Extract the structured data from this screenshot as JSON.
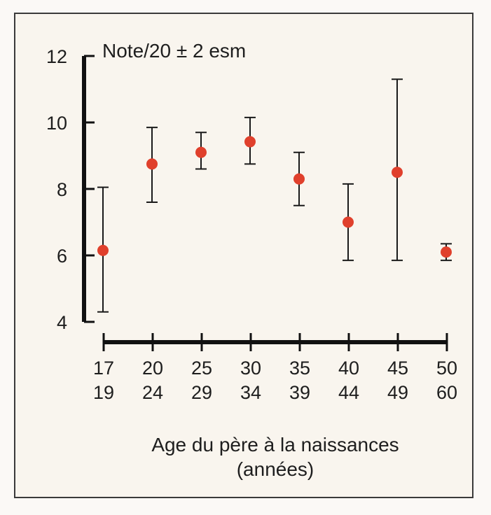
{
  "chart_data": {
    "type": "scatter",
    "title": "Note/20 ± 2 esm",
    "xlabel_lines": [
      "Age du père à la naissances",
      "(années)"
    ],
    "ylabel": "",
    "ylim": [
      4,
      12
    ],
    "yticks": [
      "4",
      "6",
      "8",
      "10",
      "12"
    ],
    "categories": [
      {
        "top": "17",
        "bottom": "19"
      },
      {
        "top": "20",
        "bottom": "24"
      },
      {
        "top": "25",
        "bottom": "29"
      },
      {
        "top": "30",
        "bottom": "34"
      },
      {
        "top": "35",
        "bottom": "39"
      },
      {
        "top": "40",
        "bottom": "44"
      },
      {
        "top": "45",
        "bottom": "49"
      },
      {
        "top": "50",
        "bottom": "60"
      }
    ],
    "series": [
      {
        "values": [
          6.15,
          8.75,
          9.1,
          9.42,
          8.3,
          7.0,
          8.5,
          6.1
        ],
        "err_low": [
          4.3,
          7.6,
          8.6,
          8.75,
          7.5,
          5.85,
          5.85,
          5.85
        ],
        "err_high": [
          8.05,
          9.85,
          9.7,
          10.15,
          9.1,
          8.15,
          11.3,
          6.35
        ]
      }
    ],
    "grid": false,
    "colors": {
      "point": "#e0402c",
      "axis": "#111111",
      "errorbar": "#1a1a1a"
    }
  }
}
